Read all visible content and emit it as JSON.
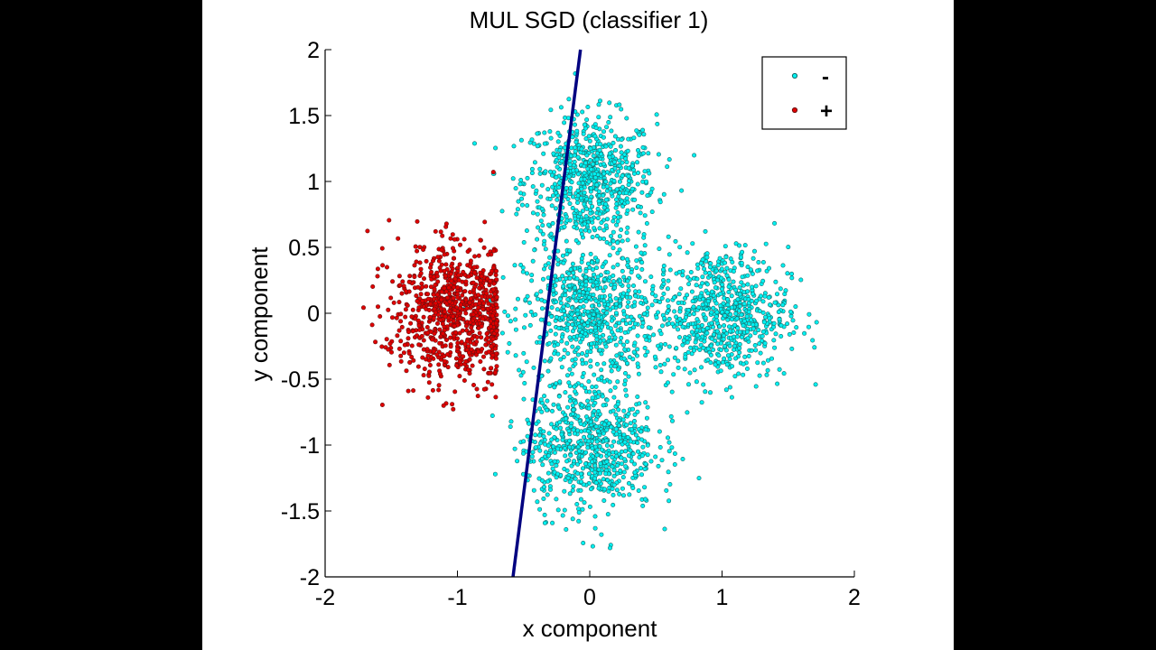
{
  "colors": {
    "background": "#000000",
    "figure": "#ffffff",
    "negative": "#00f0f0",
    "negative_edge": "#1a6a6a",
    "positive": "#e00000",
    "positive_edge": "#6a1010",
    "boundary": "#000080"
  },
  "chart_data": {
    "type": "scatter",
    "title": "MUL SGD (classifier 1)",
    "xlabel": "x component",
    "ylabel": "y component",
    "xlim": [
      -2,
      2
    ],
    "ylim": [
      -2,
      2
    ],
    "xticks": [
      -2,
      -1,
      0,
      1,
      2
    ],
    "xtick_labels": [
      "-2",
      "-1",
      "0",
      "1",
      "2"
    ],
    "yticks": [
      2,
      1.5,
      1,
      0.5,
      0,
      -0.5,
      -1,
      -1.5,
      -2
    ],
    "ytick_labels": [
      "2",
      "1.5",
      "1",
      "0.5",
      "0",
      "-0.5",
      "-1",
      "-1.5",
      "-2"
    ],
    "legend": {
      "position": "top-right",
      "entries": [
        {
          "label": "-",
          "color": "#00f0f0"
        },
        {
          "label": "+",
          "color": "#e00000"
        }
      ]
    },
    "series": [
      {
        "name": "-",
        "color": "#00f0f0",
        "clusters": [
          {
            "center": [
              0.0,
              1.0
            ],
            "spread": 0.25
          },
          {
            "center": [
              0.0,
              0.0
            ],
            "spread": 0.25
          },
          {
            "center": [
              1.0,
              0.0
            ],
            "spread": 0.25
          },
          {
            "center": [
              0.0,
              -1.0
            ],
            "spread": 0.25
          }
        ],
        "points_per_cluster": 700
      },
      {
        "name": "+",
        "color": "#e00000",
        "clusters": [
          {
            "center": [
              -1.0,
              0.0
            ],
            "spread": 0.25
          }
        ],
        "points_per_cluster": 900,
        "max_x": -0.7
      }
    ],
    "decision_boundary": {
      "points": [
        [
          -0.58,
          -2.0
        ],
        [
          -0.07,
          2.0
        ]
      ],
      "color": "#000080"
    }
  }
}
